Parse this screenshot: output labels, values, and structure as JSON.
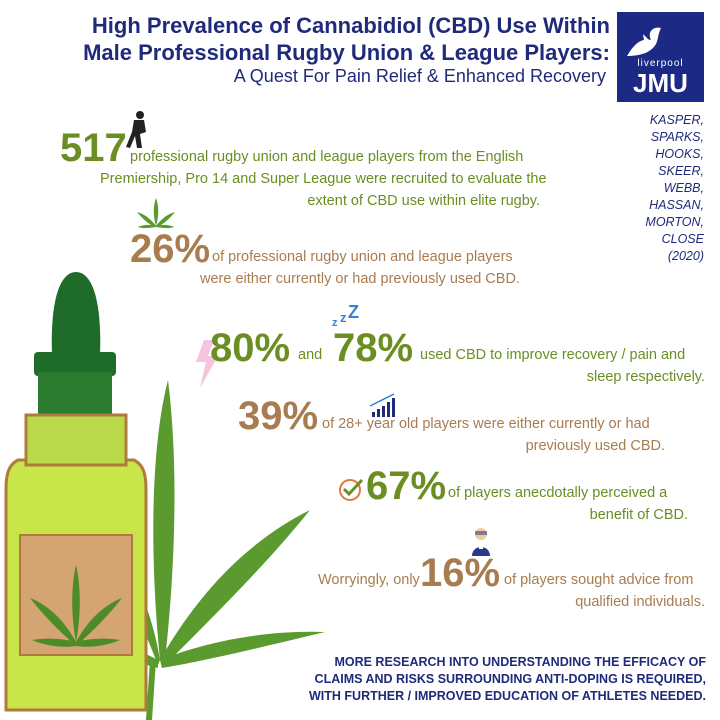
{
  "header": {
    "title_line1": "High Prevalence of Cannabidiol (CBD) Use Within",
    "title_line2": "Male Professional Rugby Union & League Players:",
    "subtitle": "A Quest For Pain Relief & Enhanced Recovery"
  },
  "logo": {
    "small": "liverpool",
    "big": "JMU"
  },
  "authors": [
    "KASPER,",
    "SPARKS,",
    "HOOKS,",
    "SKEER,",
    "WEBB,",
    "HASSAN,",
    "MORTON,",
    "CLOSE",
    "(2020)"
  ],
  "stats": {
    "s517": {
      "value": "517",
      "line1": "professional rugby union and league players from the English",
      "line2": "Premiership, Pro 14 and Super League were recruited to evaluate the",
      "line3": "extent of CBD use within elite rugby."
    },
    "s26": {
      "value": "26%",
      "line1": "of professional rugby union and league players",
      "line2": "were either currently or had previously used CBD."
    },
    "s80": {
      "value1": "80%",
      "and": "and",
      "value2": "78%",
      "line1": "used CBD to improve recovery / pain and",
      "line2": "sleep respectively."
    },
    "s39": {
      "value": "39%",
      "line1": "of 28+ year old players were either currently or had",
      "line2": "previously used CBD."
    },
    "s67": {
      "value": "67%",
      "line1": "of players anecdotally perceived a",
      "line2": "benefit of CBD."
    },
    "s16": {
      "prefix": "Worryingly, only",
      "value": "16%",
      "line1": "of players sought advice from",
      "line2": "qualified individuals."
    }
  },
  "sleep_icon": "Z",
  "bottom": {
    "line1": "MORE RESEARCH INTO UNDERSTANDING THE EFFICACY OF",
    "line2": "CLAIMS AND RISKS SURROUNDING ANTI-DOPING IS REQUIRED,",
    "line3": "WITH FURTHER / IMPROVED EDUCATION OF ATHLETES NEEDED."
  },
  "colors": {
    "navy": "#1f2b7a",
    "green": "#6b8e23",
    "brown": "#a87c4f",
    "leaf": "#5a9a2e",
    "bottle": "#c8e64a"
  },
  "icons": [
    "rugby-player-icon",
    "cannabis-leaf-icon",
    "lightning-icon",
    "sleep-zzz-icon",
    "bar-growth-icon",
    "checkmark-icon",
    "advisor-person-icon",
    "cbd-bottle-illustration"
  ]
}
